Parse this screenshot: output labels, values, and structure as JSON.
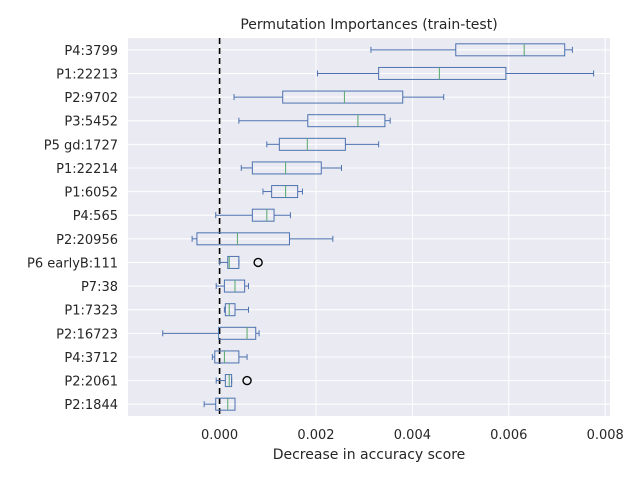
{
  "chart_data": {
    "type": "boxplot",
    "orientation": "horizontal",
    "title": "Permutation Importances (train-test)",
    "xlabel": "Decrease in accuracy score",
    "ylabel": "",
    "xlim": [
      -0.0019,
      0.0081
    ],
    "xticks": [
      0.0,
      0.002,
      0.004,
      0.006,
      0.008
    ],
    "xtick_labels": [
      "0.000",
      "0.002",
      "0.004",
      "0.006",
      "0.008"
    ],
    "grid": true,
    "background": "#eaeaf2",
    "grid_color": "#ffffff",
    "box_color": "#4c72b0",
    "median_color": "#55a868",
    "reference_line": {
      "x": 0.0,
      "style": "dashed",
      "color": "#000000"
    },
    "categories": [
      "P4:3799",
      "P1:22213",
      "P2:9702",
      "P3:5452",
      "P5 gd:1727",
      "P1:22214",
      "P1:6052",
      "P4:565",
      "P2:20956",
      "P6 earlyB:111",
      "P7:38",
      "P1:7323",
      "P2:16723",
      "P4:3712",
      "P2:2061",
      "P2:1844"
    ],
    "boxes": [
      {
        "label": "P4:3799",
        "whislo": 0.00314,
        "q1": 0.0049,
        "median": 0.00632,
        "q3": 0.00716,
        "whishi": 0.00732,
        "fliers": []
      },
      {
        "label": "P1:22213",
        "whislo": 0.00203,
        "q1": 0.0033,
        "median": 0.00456,
        "q3": 0.00594,
        "whishi": 0.00776,
        "fliers": []
      },
      {
        "label": "P2:9702",
        "whislo": 0.0003,
        "q1": 0.00131,
        "median": 0.00259,
        "q3": 0.0038,
        "whishi": 0.00465,
        "fliers": []
      },
      {
        "label": "P3:5452",
        "whislo": 0.0004,
        "q1": 0.00183,
        "median": 0.00287,
        "q3": 0.00343,
        "whishi": 0.00354,
        "fliers": []
      },
      {
        "label": "P5 gd:1727",
        "whislo": 0.00098,
        "q1": 0.00124,
        "median": 0.00182,
        "q3": 0.00261,
        "whishi": 0.0033,
        "fliers": []
      },
      {
        "label": "P1:22214",
        "whislo": 0.00045,
        "q1": 0.00068,
        "median": 0.00137,
        "q3": 0.00211,
        "whishi": 0.00253,
        "fliers": []
      },
      {
        "label": "P1:6052",
        "whislo": 0.0009,
        "q1": 0.00108,
        "median": 0.00137,
        "q3": 0.00162,
        "whishi": 0.00172,
        "fliers": []
      },
      {
        "label": "P4:565",
        "whislo": -8e-05,
        "q1": 0.00068,
        "median": 0.00098,
        "q3": 0.00113,
        "whishi": 0.00147,
        "fliers": []
      },
      {
        "label": "P2:20956",
        "whislo": -0.00057,
        "q1": -0.00047,
        "median": 0.00037,
        "q3": 0.00145,
        "whishi": 0.00235,
        "fliers": []
      },
      {
        "label": "P6 earlyB:111",
        "whislo": 0.0,
        "q1": 0.00017,
        "median": 0.0002,
        "q3": 0.0004,
        "whishi": 0.0004,
        "fliers": [
          0.0008
        ]
      },
      {
        "label": "P7:38",
        "whislo": -7e-05,
        "q1": 0.0001,
        "median": 0.00032,
        "q3": 0.00052,
        "whishi": 0.0006,
        "fliers": []
      },
      {
        "label": "P1:7323",
        "whislo": 0.0001,
        "q1": 0.00012,
        "median": 0.0002,
        "q3": 0.00032,
        "whishi": 0.0006,
        "fliers": []
      },
      {
        "label": "P2:16723",
        "whislo": -0.00118,
        "q1": -2e-05,
        "median": 0.00057,
        "q3": 0.00075,
        "whishi": 0.00082,
        "fliers": []
      },
      {
        "label": "P4:3712",
        "whislo": -0.00015,
        "q1": -0.0001,
        "median": 0.0001,
        "q3": 0.0004,
        "whishi": 0.00057,
        "fliers": []
      },
      {
        "label": "P2:2061",
        "whislo": -7e-05,
        "q1": 0.00012,
        "median": 0.0002,
        "q3": 0.00025,
        "whishi": 0.00025,
        "fliers": [
          0.00057
        ]
      },
      {
        "label": "P2:1844",
        "whislo": -0.00032,
        "q1": -8e-05,
        "median": 0.00017,
        "q3": 0.00032,
        "whishi": 0.00032,
        "fliers": []
      }
    ]
  }
}
